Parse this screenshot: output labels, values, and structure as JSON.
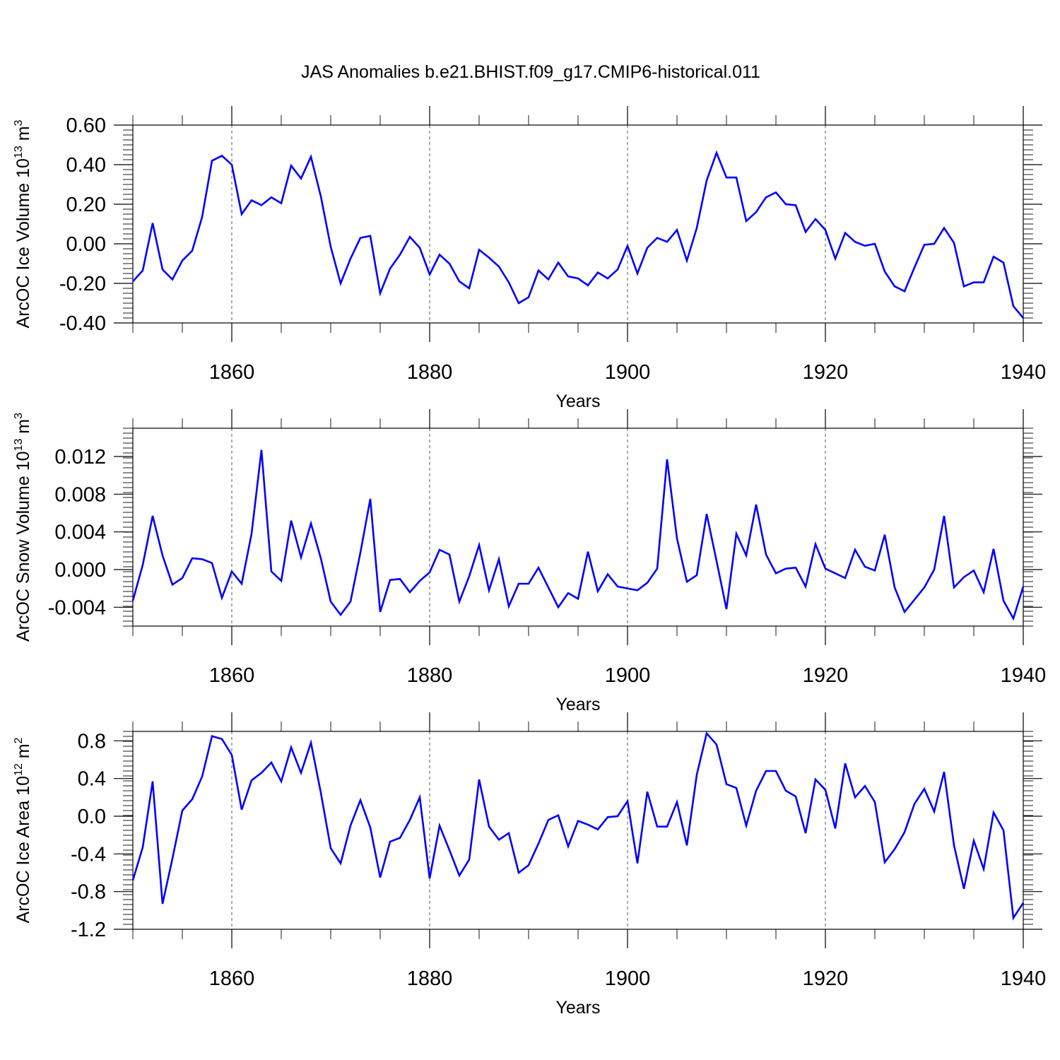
{
  "title": "JAS Anomalies b.e21.BHIST.f09_g17.CMIP6-historical.011",
  "colors": {
    "line": "#0000ff",
    "axis": "#000000",
    "grid": "#555555"
  },
  "chart_data": [
    {
      "type": "line",
      "xlabel": "Years",
      "ylabel_main": "ArcOC Ice Volume 10",
      "ylabel_exp": "13",
      "ylabel_unit": " m",
      "ylabel_unit_exp": "3",
      "xlim": [
        1850,
        1940
      ],
      "ylim": [
        -0.4,
        0.6
      ],
      "yticks": [
        -0.4,
        -0.2,
        0.0,
        0.2,
        0.4,
        0.6
      ],
      "ytick_labels": [
        "-0.40",
        "-0.20",
        "0.00",
        "0.20",
        "0.40",
        "0.60"
      ],
      "xticks": [
        1860,
        1880,
        1900,
        1920,
        1940
      ],
      "xtick_labels": [
        "1860",
        "1880",
        "1900",
        "1920",
        "1940"
      ],
      "gridlines_x": [
        1860,
        1880,
        1900,
        1920
      ],
      "series": [
        {
          "name": "ArcOC Ice Volume",
          "x": [
            1850,
            1851,
            1852,
            1853,
            1854,
            1855,
            1856,
            1857,
            1858,
            1859,
            1860,
            1861,
            1862,
            1863,
            1864,
            1865,
            1866,
            1867,
            1868,
            1869,
            1870,
            1871,
            1872,
            1873,
            1874,
            1875,
            1876,
            1877,
            1878,
            1879,
            1880,
            1881,
            1882,
            1883,
            1884,
            1885,
            1886,
            1887,
            1888,
            1889,
            1890,
            1891,
            1892,
            1893,
            1894,
            1895,
            1896,
            1897,
            1898,
            1899,
            1900,
            1901,
            1902,
            1903,
            1904,
            1905,
            1906,
            1907,
            1908,
            1909,
            1910,
            1911,
            1912,
            1913,
            1914,
            1915,
            1916,
            1917,
            1918,
            1919,
            1920,
            1921,
            1922,
            1923,
            1924,
            1925,
            1926,
            1927,
            1928,
            1929,
            1930,
            1931,
            1932,
            1933,
            1934,
            1935,
            1936,
            1937,
            1938,
            1939,
            1940
          ],
          "values": [
            -0.19,
            -0.135,
            0.105,
            -0.13,
            -0.18,
            -0.085,
            -0.035,
            0.135,
            0.42,
            0.445,
            0.4,
            0.15,
            0.22,
            0.195,
            0.235,
            0.205,
            0.395,
            0.33,
            0.44,
            0.24,
            -0.015,
            -0.2,
            -0.075,
            0.03,
            0.04,
            -0.25,
            -0.125,
            -0.055,
            0.035,
            -0.02,
            -0.155,
            -0.055,
            -0.1,
            -0.19,
            -0.225,
            -0.03,
            -0.07,
            -0.115,
            -0.195,
            -0.3,
            -0.27,
            -0.135,
            -0.18,
            -0.095,
            -0.165,
            -0.175,
            -0.21,
            -0.145,
            -0.175,
            -0.13,
            -0.01,
            -0.15,
            -0.02,
            0.03,
            0.01,
            0.07,
            -0.085,
            0.08,
            0.32,
            0.46,
            0.335,
            0.335,
            0.115,
            0.16,
            0.235,
            0.26,
            0.2,
            0.195,
            0.06,
            0.125,
            0.07,
            -0.075,
            0.055,
            0.01,
            -0.01,
            0.0,
            -0.14,
            -0.215,
            -0.24,
            -0.12,
            -0.005,
            0.0,
            0.08,
            0.005,
            -0.215,
            -0.195,
            -0.195,
            -0.065,
            -0.095,
            -0.315,
            -0.375
          ]
        }
      ]
    },
    {
      "type": "line",
      "xlabel": "Years",
      "ylabel_main": "ArcOC Snow Volume 10",
      "ylabel_exp": "13",
      "ylabel_unit": " m",
      "ylabel_unit_exp": "3",
      "xlim": [
        1850,
        1940
      ],
      "ylim": [
        -0.006,
        0.015
      ],
      "yticks": [
        -0.004,
        0.0,
        0.004,
        0.008,
        0.012
      ],
      "ytick_labels": [
        "-0.004",
        "0.000",
        "0.004",
        "0.008",
        "0.012"
      ],
      "xticks": [
        1860,
        1880,
        1900,
        1920,
        1940
      ],
      "xtick_labels": [
        "1860",
        "1880",
        "1900",
        "1920",
        "1940"
      ],
      "gridlines_x": [
        1860,
        1880,
        1900,
        1920
      ],
      "series": [
        {
          "name": "ArcOC Snow Volume",
          "x": [
            1850,
            1851,
            1852,
            1853,
            1854,
            1855,
            1856,
            1857,
            1858,
            1859,
            1860,
            1861,
            1862,
            1863,
            1864,
            1865,
            1866,
            1867,
            1868,
            1869,
            1870,
            1871,
            1872,
            1873,
            1874,
            1875,
            1876,
            1877,
            1878,
            1879,
            1880,
            1881,
            1882,
            1883,
            1884,
            1885,
            1886,
            1887,
            1888,
            1889,
            1890,
            1891,
            1892,
            1893,
            1894,
            1895,
            1896,
            1897,
            1898,
            1899,
            1900,
            1901,
            1902,
            1903,
            1904,
            1905,
            1906,
            1907,
            1908,
            1909,
            1910,
            1911,
            1912,
            1913,
            1914,
            1915,
            1916,
            1917,
            1918,
            1919,
            1920,
            1921,
            1922,
            1923,
            1924,
            1925,
            1926,
            1927,
            1928,
            1929,
            1930,
            1931,
            1932,
            1933,
            1934,
            1935,
            1936,
            1937,
            1938,
            1939,
            1940
          ],
          "values": [
            -0.0033,
            0.0005,
            0.0057,
            0.0015,
            -0.0016,
            -0.0009,
            0.0012,
            0.0011,
            0.0007,
            -0.003,
            -0.0002,
            -0.0015,
            0.0038,
            0.0127,
            -0.0002,
            -0.0012,
            0.0052,
            0.0013,
            0.0049,
            0.0012,
            -0.0034,
            -0.0048,
            -0.0034,
            0.0018,
            0.0075,
            -0.0045,
            -0.0011,
            -0.001,
            -0.0024,
            -0.0012,
            -0.0003,
            0.0021,
            0.0016,
            -0.0034,
            -0.0007,
            0.0026,
            -0.0022,
            0.0011,
            -0.0039,
            -0.0015,
            -0.0015,
            0.0002,
            -0.0019,
            -0.004,
            -0.0025,
            -0.0031,
            0.0019,
            -0.0023,
            -0.0005,
            -0.0018,
            -0.002,
            -0.0022,
            -0.0014,
            0.0001,
            0.0117,
            0.0033,
            -0.0013,
            -0.0006,
            0.0059,
            0.0009,
            -0.0042,
            0.0038,
            0.0015,
            0.0069,
            0.0016,
            -0.0004,
            0.0001,
            0.0002,
            -0.0018,
            0.0027,
            0.0001,
            -0.0004,
            -0.0009,
            0.0021,
            0.0003,
            -0.0001,
            0.0037,
            -0.0019,
            -0.0045,
            -0.0032,
            -0.0019,
            0.0,
            0.0057,
            -0.0019,
            -0.0008,
            -0.0001,
            -0.0024,
            0.0022,
            -0.0033,
            -0.0052,
            -0.0018
          ]
        }
      ]
    },
    {
      "type": "line",
      "xlabel": "Years",
      "ylabel_main": "ArcOC Ice Area 10",
      "ylabel_exp": "12",
      "ylabel_unit": " m",
      "ylabel_unit_exp": "2",
      "xlim": [
        1850,
        1940
      ],
      "ylim": [
        -1.2,
        0.9
      ],
      "yticks": [
        -1.2,
        -0.8,
        -0.4,
        0.0,
        0.4,
        0.8
      ],
      "ytick_labels": [
        "-1.2",
        "-0.8",
        "-0.4",
        "0.0",
        "0.4",
        "0.8"
      ],
      "xticks": [
        1860,
        1880,
        1900,
        1920,
        1940
      ],
      "xtick_labels": [
        "1860",
        "1880",
        "1900",
        "1920",
        "1940"
      ],
      "gridlines_x": [
        1860,
        1880,
        1900,
        1920
      ],
      "series": [
        {
          "name": "ArcOC Ice Area",
          "x": [
            1850,
            1851,
            1852,
            1853,
            1854,
            1855,
            1856,
            1857,
            1858,
            1859,
            1860,
            1861,
            1862,
            1863,
            1864,
            1865,
            1866,
            1867,
            1868,
            1869,
            1870,
            1871,
            1872,
            1873,
            1874,
            1875,
            1876,
            1877,
            1878,
            1879,
            1880,
            1881,
            1882,
            1883,
            1884,
            1885,
            1886,
            1887,
            1888,
            1889,
            1890,
            1891,
            1892,
            1893,
            1894,
            1895,
            1896,
            1897,
            1898,
            1899,
            1900,
            1901,
            1902,
            1903,
            1904,
            1905,
            1906,
            1907,
            1908,
            1909,
            1910,
            1911,
            1912,
            1913,
            1914,
            1915,
            1916,
            1917,
            1918,
            1919,
            1920,
            1921,
            1922,
            1923,
            1924,
            1925,
            1926,
            1927,
            1928,
            1929,
            1930,
            1931,
            1932,
            1933,
            1934,
            1935,
            1936,
            1937,
            1938,
            1939,
            1940
          ],
          "values": [
            -0.68,
            -0.33,
            0.37,
            -0.93,
            -0.45,
            0.06,
            0.18,
            0.42,
            0.85,
            0.82,
            0.65,
            0.07,
            0.38,
            0.46,
            0.57,
            0.37,
            0.73,
            0.46,
            0.78,
            0.25,
            -0.34,
            -0.5,
            -0.1,
            0.17,
            -0.12,
            -0.65,
            -0.27,
            -0.23,
            -0.04,
            0.2,
            -0.66,
            -0.1,
            -0.36,
            -0.63,
            -0.46,
            0.39,
            -0.11,
            -0.25,
            -0.18,
            -0.6,
            -0.52,
            -0.29,
            -0.04,
            0.01,
            -0.32,
            -0.05,
            -0.09,
            -0.14,
            -0.01,
            0.0,
            0.16,
            -0.5,
            0.26,
            -0.11,
            -0.11,
            0.15,
            -0.31,
            0.44,
            0.88,
            0.76,
            0.34,
            0.3,
            -0.1,
            0.27,
            0.48,
            0.48,
            0.27,
            0.21,
            -0.18,
            0.39,
            0.28,
            -0.13,
            0.56,
            0.2,
            0.32,
            0.15,
            -0.49,
            -0.35,
            -0.17,
            0.13,
            0.29,
            0.05,
            0.47,
            -0.31,
            -0.77,
            -0.26,
            -0.56,
            0.04,
            -0.15,
            -1.08,
            -0.92
          ]
        }
      ]
    }
  ]
}
